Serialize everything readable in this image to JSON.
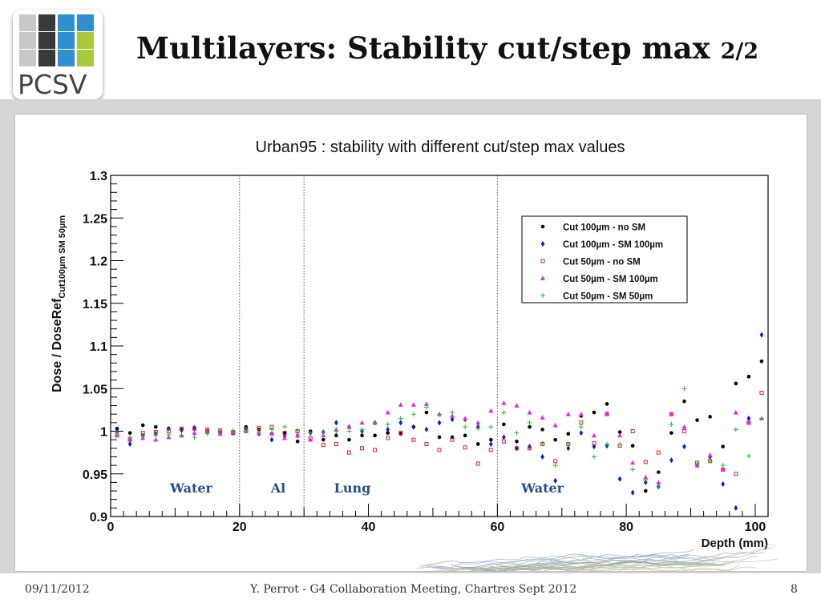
{
  "header": {
    "logo_text": "PCSV",
    "logo_colors": [
      "#3a3a3a",
      "#2f8fd0",
      "#a7c93b",
      "#c9c9c9"
    ],
    "title": "Multilayers: Stability cut/step max",
    "title_part": "2/2"
  },
  "footer": {
    "date": "09/11/2012",
    "presenter": "Y. Perrot - G4 Collaboration Meeting, Chartres Sept 2012",
    "page": "8"
  },
  "chart_data": {
    "type": "scatter",
    "title": "Urban95 : stability with different cut/step max values",
    "xlabel": "Depth (mm)",
    "ylabel_main": "Dose / DoseRef",
    "ylabel_sub": "Cut100µm SM 50µm",
    "xlim": [
      0,
      102
    ],
    "ylim": [
      0.9,
      1.3
    ],
    "xticks": [
      "0",
      "20",
      "40",
      "60",
      "80",
      "100"
    ],
    "yticks": [
      "0.9",
      "0.95",
      "1",
      "1.05",
      "1.1",
      "1.15",
      "1.2",
      "1.25",
      "1.3"
    ],
    "boundaries": [
      20,
      30,
      60
    ],
    "regions": [
      {
        "label": "Water",
        "x": 12.5
      },
      {
        "label": "Al",
        "x": 26
      },
      {
        "label": "Lung",
        "x": 37.5
      },
      {
        "label": "Water",
        "x": 67
      }
    ],
    "legend_position": "top-right",
    "series": [
      {
        "name": "Cut 100µm - no SM",
        "marker": "dot",
        "color": "#000000",
        "points": [
          [
            1,
            1.003
          ],
          [
            3,
            0.998
          ],
          [
            5,
            1.007
          ],
          [
            7,
            1.005
          ],
          [
            9,
            1.003
          ],
          [
            11,
            1.002
          ],
          [
            13,
            1.004
          ],
          [
            15,
            0.999
          ],
          [
            17,
            0.998
          ],
          [
            19,
            0.999
          ],
          [
            21,
            1.005
          ],
          [
            23,
            1.002
          ],
          [
            25,
            0.997
          ],
          [
            27,
            0.998
          ],
          [
            29,
            0.988
          ],
          [
            31,
            1.0
          ],
          [
            33,
            0.99
          ],
          [
            35,
            0.995
          ],
          [
            37,
            0.99
          ],
          [
            39,
            0.995
          ],
          [
            41,
            0.995
          ],
          [
            43,
            0.998
          ],
          [
            45,
            0.997
          ],
          [
            47,
            1.005
          ],
          [
            49,
            1.022
          ],
          [
            51,
            0.993
          ],
          [
            53,
            0.993
          ],
          [
            55,
            0.995
          ],
          [
            57,
            0.985
          ],
          [
            59,
            0.99
          ],
          [
            61,
            1.008
          ],
          [
            63,
            0.988
          ],
          [
            65,
            1.005
          ],
          [
            67,
            1.002
          ],
          [
            69,
            0.99
          ],
          [
            71,
            0.997
          ],
          [
            73,
            1.018
          ],
          [
            75,
            1.022
          ],
          [
            77,
            1.032
          ],
          [
            79,
            0.999
          ],
          [
            81,
            0.983
          ],
          [
            83,
            0.93
          ],
          [
            85,
            0.952
          ],
          [
            87,
            0.998
          ],
          [
            89,
            1.035
          ],
          [
            91,
            1.013
          ],
          [
            93,
            1.017
          ],
          [
            95,
            0.982
          ],
          [
            97,
            1.056
          ],
          [
            99,
            1.064
          ],
          [
            101,
            1.082
          ]
        ]
      },
      {
        "name": "Cut 100µm - SM 100µm",
        "marker": "diamond",
        "color": "#0022cc",
        "points": [
          [
            1,
            1.0
          ],
          [
            3,
            0.985
          ],
          [
            5,
            0.995
          ],
          [
            7,
            0.997
          ],
          [
            9,
            1.003
          ],
          [
            11,
            1.001
          ],
          [
            13,
            1.004
          ],
          [
            15,
            1.0
          ],
          [
            17,
            0.999
          ],
          [
            19,
            0.998
          ],
          [
            21,
            1.003
          ],
          [
            23,
            0.997
          ],
          [
            25,
            0.99
          ],
          [
            27,
            0.994
          ],
          [
            29,
            0.995
          ],
          [
            31,
            0.998
          ],
          [
            33,
            0.999
          ],
          [
            35,
            1.01
          ],
          [
            37,
            1.005
          ],
          [
            39,
            1.0
          ],
          [
            41,
            1.01
          ],
          [
            43,
            1.002
          ],
          [
            45,
            1.01
          ],
          [
            47,
            1.005
          ],
          [
            49,
            1.002
          ],
          [
            51,
            1.01
          ],
          [
            53,
            1.014
          ],
          [
            55,
            1.014
          ],
          [
            57,
            1.005
          ],
          [
            59,
            0.985
          ],
          [
            61,
            0.993
          ],
          [
            63,
            0.98
          ],
          [
            65,
            0.982
          ],
          [
            67,
            0.97
          ],
          [
            69,
            0.942
          ],
          [
            71,
            0.98
          ],
          [
            73,
            0.998
          ],
          [
            75,
            0.982
          ],
          [
            77,
            0.983
          ],
          [
            79,
            0.944
          ],
          [
            81,
            0.928
          ],
          [
            83,
            0.94
          ],
          [
            85,
            0.935
          ],
          [
            87,
            0.966
          ],
          [
            89,
            0.982
          ],
          [
            91,
            0.96
          ],
          [
            93,
            0.97
          ],
          [
            95,
            0.938
          ],
          [
            97,
            0.91
          ],
          [
            99,
            1.015
          ],
          [
            101,
            1.113
          ]
        ]
      },
      {
        "name": "Cut 50µm - no SM",
        "marker": "square",
        "color": "#e0202a",
        "points": [
          [
            1,
            0.996
          ],
          [
            3,
            0.99
          ],
          [
            5,
            0.998
          ],
          [
            7,
            0.999
          ],
          [
            9,
            1.0
          ],
          [
            11,
            1.003
          ],
          [
            13,
            1.003
          ],
          [
            15,
            1.002
          ],
          [
            17,
            1.001
          ],
          [
            19,
            0.998
          ],
          [
            21,
            1.002
          ],
          [
            23,
            1.004
          ],
          [
            25,
            1.005
          ],
          [
            27,
            0.998
          ],
          [
            29,
            1.0
          ],
          [
            31,
            0.992
          ],
          [
            33,
            0.984
          ],
          [
            35,
            0.985
          ],
          [
            37,
            0.975
          ],
          [
            39,
            0.98
          ],
          [
            41,
            0.978
          ],
          [
            43,
            0.992
          ],
          [
            45,
            0.998
          ],
          [
            47,
            0.99
          ],
          [
            49,
            0.985
          ],
          [
            51,
            0.978
          ],
          [
            53,
            0.99
          ],
          [
            55,
            0.981
          ],
          [
            57,
            0.962
          ],
          [
            59,
            0.978
          ],
          [
            61,
            0.988
          ],
          [
            63,
            0.98
          ],
          [
            65,
            0.98
          ],
          [
            67,
            0.985
          ],
          [
            69,
            0.965
          ],
          [
            71,
            0.985
          ],
          [
            73,
            1.01
          ],
          [
            75,
            0.986
          ],
          [
            77,
            1.02
          ],
          [
            79,
            0.983
          ],
          [
            81,
            1.0
          ],
          [
            83,
            0.964
          ],
          [
            85,
            0.975
          ],
          [
            87,
            1.02
          ],
          [
            89,
            1.0
          ],
          [
            91,
            0.963
          ],
          [
            93,
            0.965
          ],
          [
            95,
            0.955
          ],
          [
            97,
            0.95
          ],
          [
            99,
            1.01
          ],
          [
            101,
            1.045
          ]
        ]
      },
      {
        "name": "Cut 50µm - SM 100µm",
        "marker": "triangle",
        "color": "#ee22ee",
        "points": [
          [
            1,
            0.995
          ],
          [
            3,
            0.99
          ],
          [
            5,
            0.992
          ],
          [
            7,
            0.99
          ],
          [
            9,
            0.993
          ],
          [
            11,
            0.995
          ],
          [
            13,
            0.998
          ],
          [
            15,
            0.999
          ],
          [
            17,
            0.997
          ],
          [
            19,
            0.999
          ],
          [
            21,
            1.0
          ],
          [
            23,
            0.998
          ],
          [
            25,
            0.997
          ],
          [
            27,
            0.992
          ],
          [
            29,
            0.995
          ],
          [
            31,
            0.99
          ],
          [
            33,
            0.995
          ],
          [
            35,
            1.002
          ],
          [
            37,
            1.005
          ],
          [
            39,
            1.01
          ],
          [
            41,
            1.01
          ],
          [
            43,
            1.022
          ],
          [
            45,
            1.031
          ],
          [
            47,
            1.031
          ],
          [
            49,
            1.032
          ],
          [
            51,
            1.02
          ],
          [
            53,
            1.018
          ],
          [
            55,
            1.015
          ],
          [
            57,
            1.01
          ],
          [
            59,
            1.024
          ],
          [
            61,
            1.033
          ],
          [
            63,
            1.03
          ],
          [
            65,
            1.022
          ],
          [
            67,
            1.016
          ],
          [
            69,
            1.007
          ],
          [
            71,
            1.02
          ],
          [
            73,
            1.02
          ],
          [
            75,
            0.995
          ],
          [
            77,
            1.021
          ],
          [
            79,
            0.995
          ],
          [
            81,
            0.963
          ],
          [
            83,
            0.946
          ],
          [
            85,
            0.94
          ],
          [
            87,
            1.02
          ],
          [
            89,
            1.005
          ],
          [
            91,
            0.96
          ],
          [
            93,
            0.972
          ],
          [
            95,
            0.955
          ],
          [
            97,
            1.022
          ],
          [
            99,
            1.01
          ],
          [
            101,
            1.015
          ]
        ]
      },
      {
        "name": "Cut 50µm - SM 50µm",
        "marker": "plus",
        "color": "#22bb22",
        "points": [
          [
            1,
            0.998
          ],
          [
            3,
            0.993
          ],
          [
            5,
            0.994
          ],
          [
            7,
            0.995
          ],
          [
            9,
            0.996
          ],
          [
            11,
            0.995
          ],
          [
            13,
            0.993
          ],
          [
            15,
            0.997
          ],
          [
            17,
            0.999
          ],
          [
            19,
            1.001
          ],
          [
            21,
            1.0
          ],
          [
            23,
            0.999
          ],
          [
            25,
            1.002
          ],
          [
            27,
            1.005
          ],
          [
            29,
            1.001
          ],
          [
            31,
            0.998
          ],
          [
            33,
            0.999
          ],
          [
            35,
            1.0
          ],
          [
            37,
            1.0
          ],
          [
            39,
            1.002
          ],
          [
            41,
            1.01
          ],
          [
            43,
            1.008
          ],
          [
            45,
            1.015
          ],
          [
            47,
            1.02
          ],
          [
            49,
            1.028
          ],
          [
            51,
            1.02
          ],
          [
            53,
            1.022
          ],
          [
            55,
            1.005
          ],
          [
            57,
            1.003
          ],
          [
            59,
            1.005
          ],
          [
            61,
            1.022
          ],
          [
            63,
            0.998
          ],
          [
            65,
            1.01
          ],
          [
            67,
            0.986
          ],
          [
            69,
            0.96
          ],
          [
            71,
            0.985
          ],
          [
            73,
            1.005
          ],
          [
            75,
            0.97
          ],
          [
            77,
            0.985
          ],
          [
            79,
            0.985
          ],
          [
            81,
            0.955
          ],
          [
            83,
            0.943
          ],
          [
            85,
            0.935
          ],
          [
            87,
            1.008
          ],
          [
            89,
            1.05
          ],
          [
            91,
            0.962
          ],
          [
            93,
            0.965
          ],
          [
            95,
            0.96
          ],
          [
            97,
            1.002
          ],
          [
            99,
            0.971
          ],
          [
            101,
            1.015
          ]
        ]
      }
    ]
  }
}
